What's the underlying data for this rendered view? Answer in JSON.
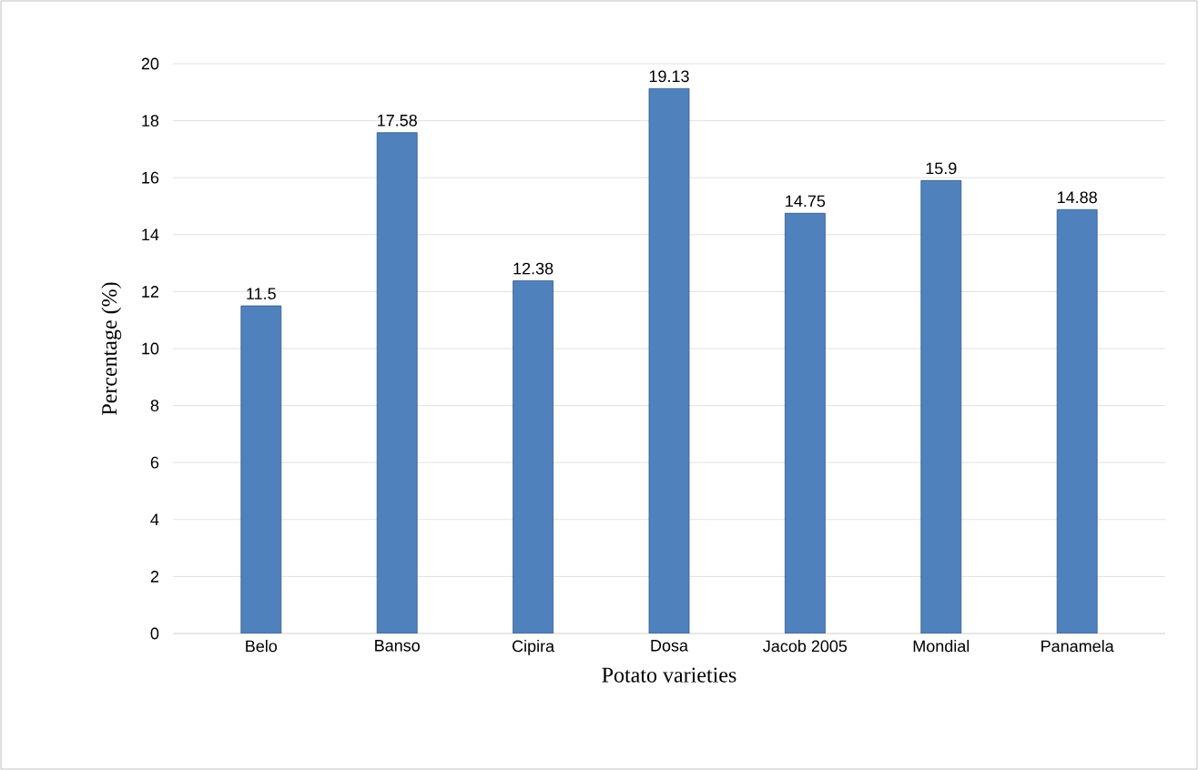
{
  "chart_data": {
    "type": "bar",
    "xlabel": "Potato varieties",
    "ylabel": "Percentage (%)",
    "categories": [
      "Belo",
      "Banso",
      "Cipira",
      "Dosa",
      "Jacob 2005",
      "Mondial",
      "Panamela"
    ],
    "values": [
      11.5,
      17.58,
      12.38,
      19.13,
      14.75,
      15.9,
      14.88
    ],
    "color": "#4f81bd",
    "ylim": [
      0,
      20
    ],
    "yticks": [
      0,
      2,
      4,
      6,
      8,
      10,
      12,
      14,
      16,
      18,
      20
    ],
    "grid": "y",
    "data_labels": true
  }
}
